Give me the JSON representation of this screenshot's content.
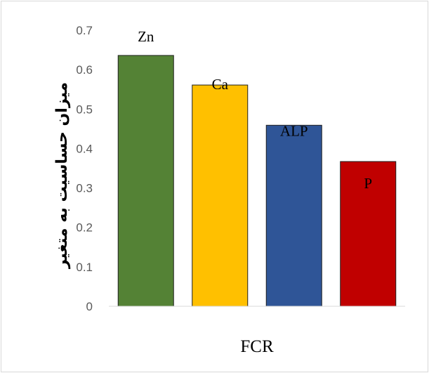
{
  "chart_data": {
    "type": "bar",
    "categories": [
      "Zn",
      "Ca",
      "ALP",
      "P"
    ],
    "values": [
      0.636,
      0.561,
      0.459,
      0.367
    ],
    "colors": [
      "#548235",
      "#ffc000",
      "#2f5597",
      "#c00000"
    ],
    "xlabel": "FCR",
    "ylabel": "میزان حساسیت به متغیر",
    "ylim": [
      0,
      0.7
    ],
    "yticks": [
      0,
      0.1,
      0.2,
      0.3,
      0.4,
      0.5,
      0.6,
      0.7
    ],
    "ytick_labels": [
      "0",
      "0.1",
      "0.2",
      "0.3",
      "0.4",
      "0.5",
      "0.6",
      "0.7"
    ],
    "grid": false,
    "legend": "none"
  }
}
